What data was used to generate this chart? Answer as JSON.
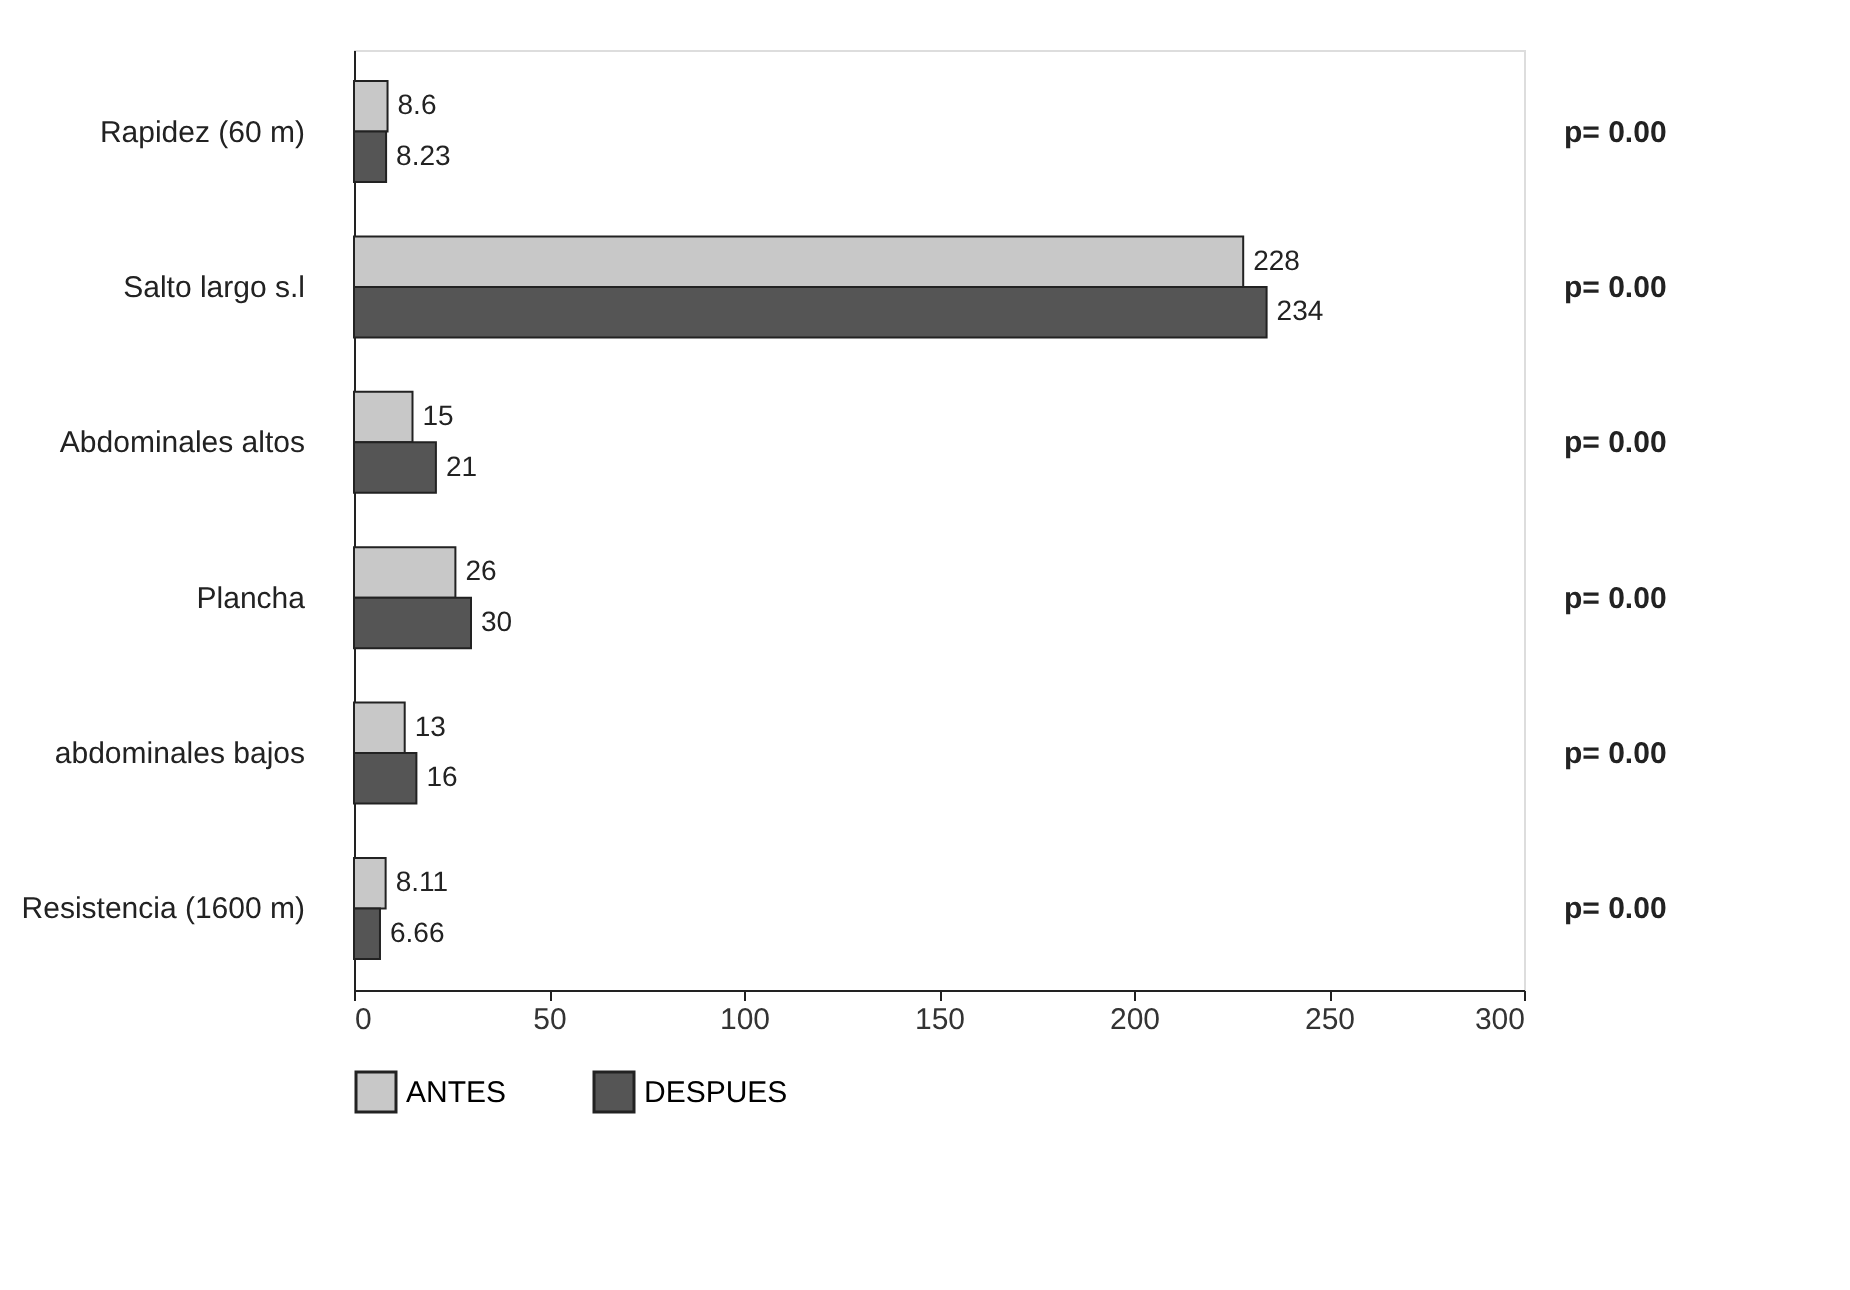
{
  "chart_data": {
    "type": "bar",
    "orientation": "horizontal",
    "categories": [
      "Rapidez (60 m)",
      "Salto largo s.l",
      "Abdominales altos",
      "Plancha",
      "abdominales bajos",
      "Resistencia (1600 m)"
    ],
    "series": [
      {
        "name": "ANTES",
        "color": "#c8c8c8",
        "values": [
          8.6,
          228,
          15,
          26,
          13,
          8.11
        ]
      },
      {
        "name": "DESPUES",
        "color": "#555555",
        "values": [
          8.23,
          234,
          21,
          30,
          16,
          6.66
        ]
      }
    ],
    "xlim": [
      0,
      300
    ],
    "xticks": [
      0,
      50,
      100,
      150,
      200,
      250,
      300
    ],
    "data_labels": true,
    "grid": false,
    "legend": "bottom",
    "annotations": [
      "p= 0.00",
      "p= 0.00",
      "p= 0.00",
      "p= 0.00",
      "p= 0.00",
      "p= 0.00"
    ]
  }
}
